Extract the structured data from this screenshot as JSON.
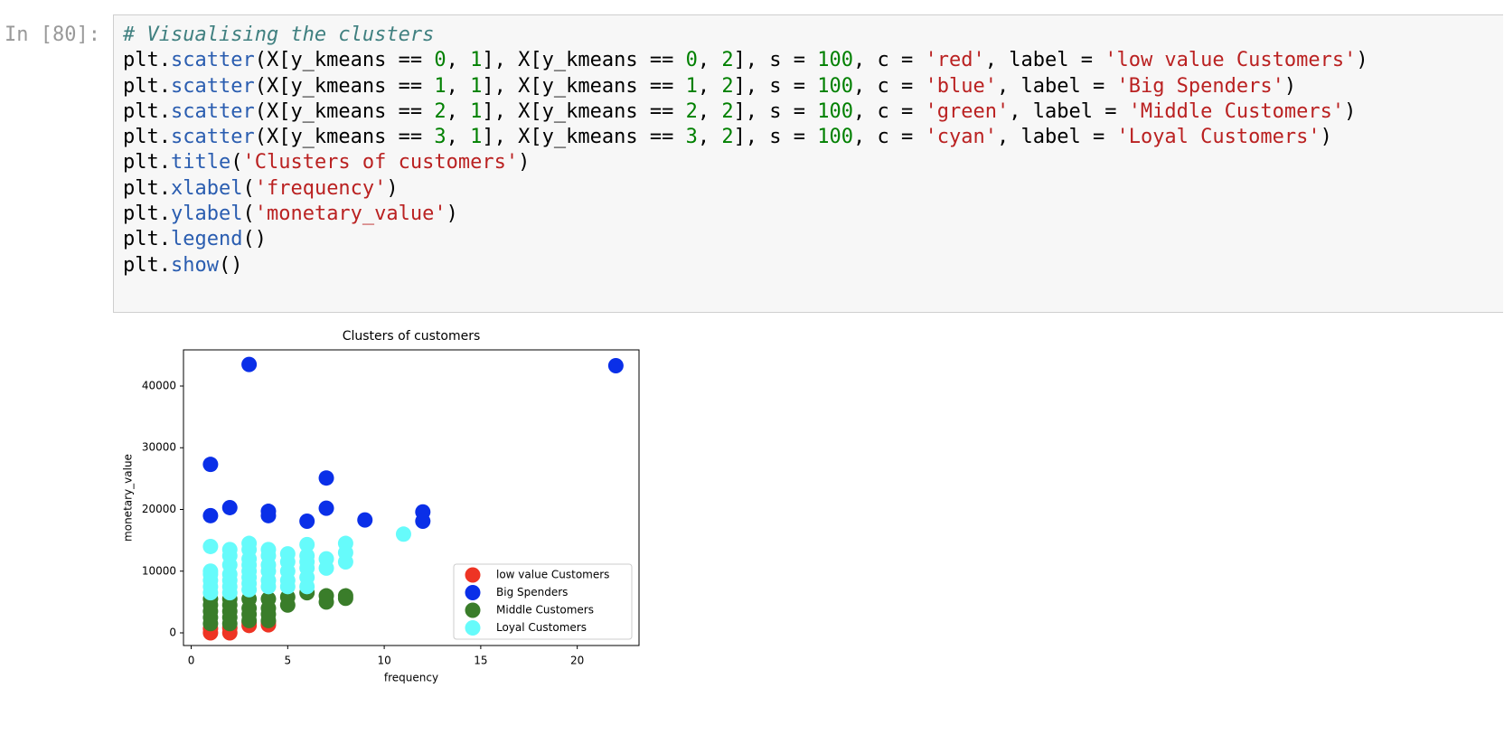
{
  "cell": {
    "prompt": "In [80]:",
    "code": [
      "# Visualising the clusters",
      "plt.scatter(X[y_kmeans == 0, 1], X[y_kmeans == 0, 2], s = 100, c = 'red', label = 'low value Customers')",
      "plt.scatter(X[y_kmeans == 1, 1], X[y_kmeans == 1, 2], s = 100, c = 'blue', label = 'Big Spenders')",
      "plt.scatter(X[y_kmeans == 2, 1], X[y_kmeans == 2, 2], s = 100, c = 'green', label = 'Middle Customers')",
      "plt.scatter(X[y_kmeans == 3, 1], X[y_kmeans == 3, 2], s = 100, c = 'cyan', label = 'Loyal Customers')",
      "plt.title('Clusters of customers')",
      "plt.xlabel('frequency')",
      "plt.ylabel('monetary_value')",
      "plt.legend()",
      "plt.show()"
    ]
  },
  "chart_data": {
    "type": "scatter",
    "title": "Clusters of customers",
    "x_label": "frequency",
    "y_label": "monetary_value",
    "xlim": [
      -0.4,
      23.2
    ],
    "ylim": [
      -2050,
      45860
    ],
    "xticks": [
      0,
      5,
      10,
      15,
      20
    ],
    "yticks": [
      0,
      10000,
      20000,
      30000,
      40000
    ],
    "legend": "lower right",
    "series": [
      {
        "name": "low value Customers",
        "color": "#ee3424",
        "x": [
          1,
          1,
          2,
          2,
          3,
          3,
          4,
          4
        ],
        "values": [
          0,
          700,
          0,
          800,
          1200,
          1700,
          1300,
          1800
        ]
      },
      {
        "name": "Big Spenders",
        "color": "#0a2fe8",
        "x": [
          3,
          22,
          1,
          7,
          1,
          2,
          4,
          4,
          6,
          7,
          9,
          12,
          12
        ],
        "values": [
          43500,
          43300,
          27300,
          25100,
          19000,
          20300,
          19700,
          19000,
          18100,
          20200,
          18300,
          19600,
          18100
        ]
      },
      {
        "name": "Middle Customers",
        "color": "#3a7d2a",
        "x": [
          1,
          1,
          1,
          1,
          1,
          2,
          2,
          2,
          2,
          2,
          3,
          3,
          3,
          3,
          4,
          4,
          4,
          4,
          5,
          5,
          6,
          7,
          7,
          8,
          8
        ],
        "values": [
          1500,
          2500,
          3500,
          4500,
          5500,
          1500,
          2500,
          3500,
          4500,
          5500,
          2000,
          3000,
          4000,
          5500,
          2000,
          3000,
          4000,
          5500,
          4500,
          5800,
          6500,
          5000,
          6000,
          5600,
          6000
        ]
      },
      {
        "name": "Loyal Customers",
        "color": "#66fbfb",
        "x": [
          1,
          1,
          1,
          1,
          1,
          1,
          2,
          2,
          2,
          2,
          2,
          2,
          2,
          3,
          3,
          3,
          3,
          3,
          3,
          3,
          3,
          4,
          4,
          4,
          4,
          4,
          4,
          5,
          5,
          5,
          5,
          5,
          6,
          6,
          6,
          6,
          6,
          6,
          7,
          7,
          8,
          8,
          8,
          11
        ],
        "values": [
          6500,
          7500,
          8500,
          9500,
          10000,
          14000,
          6500,
          7500,
          8500,
          9500,
          11000,
          12500,
          13500,
          7000,
          8000,
          9000,
          10000,
          11000,
          12000,
          13500,
          14500,
          7500,
          8500,
          10000,
          11000,
          12500,
          13500,
          7500,
          8500,
          10000,
          11500,
          12800,
          7500,
          9000,
          10500,
          11500,
          12500,
          14300,
          10500,
          12000,
          11500,
          13000,
          14500,
          16000
        ]
      }
    ]
  }
}
